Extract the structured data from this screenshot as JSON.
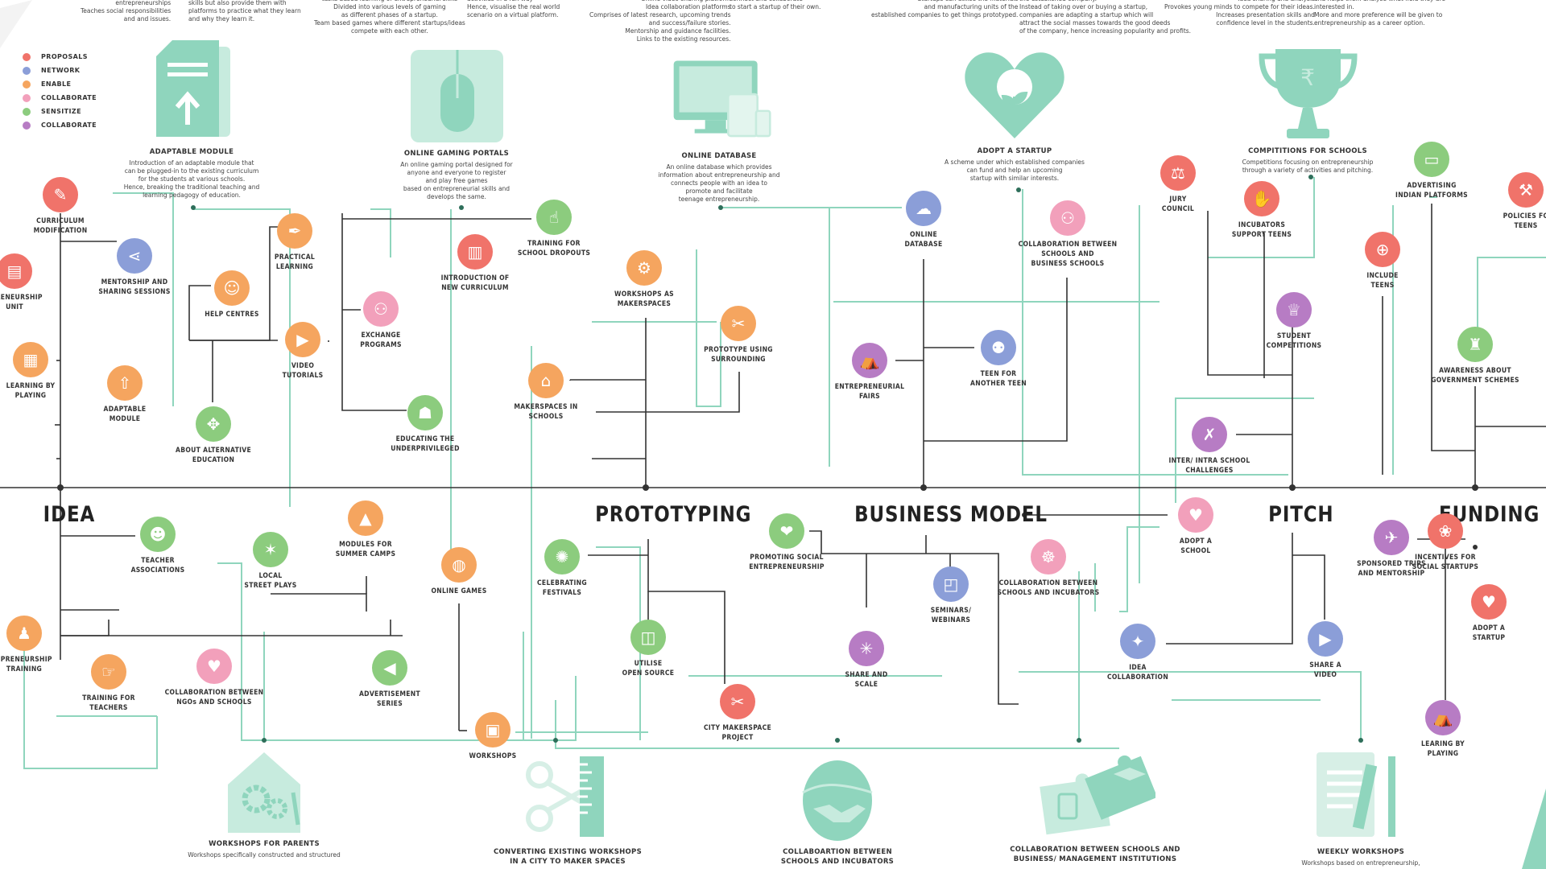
{
  "legend": [
    {
      "label": "PROPOSALS",
      "color": "#f0736a"
    },
    {
      "label": "NETWORK",
      "color": "#8b9ed8"
    },
    {
      "label": "ENABLE",
      "color": "#f5a55f"
    },
    {
      "label": "COLLABORATE",
      "color": "#f2a0bb"
    },
    {
      "label": "SENSITIZE",
      "color": "#8ccc7e"
    },
    {
      "label": "COLLABORATE",
      "color": "#b77cc4"
    }
  ],
  "stages": [
    "IDEA",
    "PROTOTYPING",
    "BUSINESS MODEL",
    "PITCH",
    "FUNDING"
  ],
  "top_texts": [
    "entrepreneurships\nTeaches social responsibilities\nand and issues.",
    "skills but also provide them with\nplatforms to practice what they learn\nand why they learn it.",
    "tasks based learning of entrepreneurial skills\nDivided into various levels of gaming\nas different phases of a startup.\nTeam based games where different startups/ideas\ncompete with each other.",
    "activities in a fun way\nHence, visualise the real world\nscenario on a virtual platform.",
    "Online video sharing platform\nIdea collaboration platforms\nComprises of latest research, upcoming trends\nand success/failure stories.\nMentorship and guidance facilities.\nLinks to the existing resources.",
    "connect and collaborate\nto start a startup of their own.",
    "Startups can utilise the materials\nand manufacturing units of the\nestablished companies to get things prototyped.",
    "the established company.\nInstead of taking over or buying a startup,\ncompanies are adapting a startup which will\nattract the social masses towards the good deeds\nof the company, hence increasing popularity and profits.",
    "Idea sharing and analysis\nProvokes young minds to compete for their ideas.\nIncreases presentation skills and\nconfidence level in the students.",
    "and helps them analyse what field they are\ninterested in.\nMore and more preference will be given to\nentrepreneurship as a career option."
  ],
  "big_items": [
    {
      "title": "ADAPTABLE MODULE",
      "desc": "Introduction of an adaptable module that\ncan be plugged-in to the existing curriculum\nfor the students at various schools.\nHence, breaking the traditional teaching and\nlearning pedagogy of education.",
      "icon": "document-upload-icon"
    },
    {
      "title": "ONLINE GAMING PORTALS",
      "desc": "An online gaming portal designed for\nanyone and everyone to register\nand play free games\nbased on entrepreneurial skills and\ndevelops the same.",
      "icon": "mouse-icon"
    },
    {
      "title": "ONLINE DATABASE",
      "desc": "An online database which provides\ninformation about entrepreneurship and\nconnects people with an idea to\npromote and facilitate\nteenage entrepreneurship.",
      "icon": "devices-icon"
    },
    {
      "title": "ADOPT A STARTUP",
      "desc": "A scheme under which established companies\ncan fund and help an upcoming\nstartup with similar interests.",
      "icon": "heart-plant-icon"
    },
    {
      "title": "COMPITITIONS FOR SCHOOLS",
      "desc": "Competitions focusing on entrepreneurship\nthrough a variety of activities and pitching.",
      "icon": "trophy-icon"
    },
    {
      "title": "WORKSHOPS FOR PARENTS",
      "desc": "Workshops specifically constructed and structured",
      "icon": "house-gears-icon"
    },
    {
      "title": "CONVERTING EXISTING WORKSHOPS\nIN A CITY TO MAKER SPACES",
      "desc": "",
      "icon": "tools-icon"
    },
    {
      "title": "COLLABOARTION BETWEEN\nSCHOOLS AND INCUBATORS",
      "desc": "",
      "icon": "egg-handshake-icon"
    },
    {
      "title": "COLLABORATION BETWEEN SCHOOLS AND\nBUSINESS/ MANAGEMENT INSTITUTIONS",
      "desc": "",
      "icon": "puzzle-icon"
    },
    {
      "title": "WEEKLY WORKSHOPS",
      "desc": "Workshops based on entrepreneurship,",
      "icon": "clipboard-pencil-icon"
    }
  ],
  "nodes": [
    {
      "label": "CURRICULUM\nMODIFICATION",
      "color": "#f0736a",
      "icon": "pencil-icon"
    },
    {
      "label": "EPRENEURSHIP\nUNIT",
      "color": "#f0736a",
      "icon": "book-icon"
    },
    {
      "label": "LEARNING BY\nPLAYING",
      "color": "#f5a55f",
      "icon": "cards-icon"
    },
    {
      "label": "MENTORSHIP AND\nSHARING SESSIONS",
      "color": "#8b9ed8",
      "icon": "share-icon"
    },
    {
      "label": "ADAPTABLE\nMODULE",
      "color": "#f5a55f",
      "icon": "upload-icon"
    },
    {
      "label": "HELP CENTRES",
      "color": "#f5a55f",
      "icon": "helpdesk-icon"
    },
    {
      "label": "PRACTICAL\nLEARNING",
      "color": "#f5a55f",
      "icon": "pen-icon"
    },
    {
      "label": "VIDEO\nTUTORIALS",
      "color": "#f5a55f",
      "icon": "play-icon"
    },
    {
      "label": "ABOUT ALTERNATIVE\nEDUCATION",
      "color": "#8ccc7e",
      "icon": "arrows-icon"
    },
    {
      "label": "EXCHANGE\nPROGRAMS",
      "color": "#f2a0bb",
      "icon": "people-icon"
    },
    {
      "label": "INTRODUCTION OF\nNEW CURRICULUM",
      "color": "#f0736a",
      "icon": "document-icon"
    },
    {
      "label": "EDUCATING THE\nUNDERPRIVILEGED",
      "color": "#8ccc7e",
      "icon": "teach-icon"
    },
    {
      "label": "TRAINING FOR\nSCHOOL DROPOUTS",
      "color": "#8ccc7e",
      "icon": "training-icon"
    },
    {
      "label": "WORKSHOPS AS\nMAKERSPACES",
      "color": "#f5a55f",
      "icon": "gears-icon"
    },
    {
      "label": "PROTOTYPE USING\nSURROUNDING",
      "color": "#f5a55f",
      "icon": "tools-icon"
    },
    {
      "label": "MAKERSPACES IN\nSCHOOLS",
      "color": "#f5a55f",
      "icon": "school-icon"
    },
    {
      "label": "ONLINE\nDATABASE",
      "color": "#8b9ed8",
      "icon": "cloud-icon"
    },
    {
      "label": "ENTREPRENEURIAL\nFAIRS",
      "color": "#b77cc4",
      "icon": "stall-icon"
    },
    {
      "label": "TEEN FOR\nANOTHER TEEN",
      "color": "#8b9ed8",
      "icon": "pair-icon"
    },
    {
      "label": "COLLABORATION BETWEEN\nSCHOOLS AND\nBUSINESS SCHOOLS",
      "color": "#f2a0bb",
      "icon": "group-icon"
    },
    {
      "label": "JURY\nCOUNCIL",
      "color": "#f0736a",
      "icon": "scales-icon"
    },
    {
      "label": "INCUBATORS\nSUPPORT TEENS",
      "color": "#f0736a",
      "icon": "hands-icon"
    },
    {
      "label": "STUDENT\nCOMPETITIONS",
      "color": "#b77cc4",
      "icon": "trophy-icon"
    },
    {
      "label": "INCLUDE\nTEENS",
      "color": "#f0736a",
      "icon": "plus-icon"
    },
    {
      "label": "INTER/ INTRA SCHOOL\nCHALLENGES",
      "color": "#b77cc4",
      "icon": "strategy-icon"
    },
    {
      "label": "ADVERTISING\nINDIAN PLATFORMS",
      "color": "#8ccc7e",
      "icon": "monitor-icon"
    },
    {
      "label": "AWARENESS ABOUT\nGOVERNMENT SCHEMES",
      "color": "#8ccc7e",
      "icon": "emblem-icon"
    },
    {
      "label": "POLICIES FO\nTEENS",
      "color": "#f0736a",
      "icon": "gavel-icon"
    },
    {
      "label": "TEACHER\nASSOCIATIONS",
      "color": "#8ccc7e",
      "icon": "teachers-icon"
    },
    {
      "label": "LOCAL\nSTREET PLAYS",
      "color": "#8ccc7e",
      "icon": "dancers-icon"
    },
    {
      "label": "MODULES FOR\nSUMMER CAMPS",
      "color": "#f5a55f",
      "icon": "tent-icon"
    },
    {
      "label": "ONLINE GAMES",
      "color": "#f5a55f",
      "icon": "mouse-icon"
    },
    {
      "label": "EPRENEURSHIP\nTRAINING",
      "color": "#f5a55f",
      "icon": "runner-icon"
    },
    {
      "label": "TRAINING FOR\nTEACHERS",
      "color": "#f5a55f",
      "icon": "lecture-icon"
    },
    {
      "label": "COLLABORATION BETWEEN\nNGOs AND SCHOOLS",
      "color": "#f2a0bb",
      "icon": "care-icon"
    },
    {
      "label": "ADVERTISEMENT\nSERIES",
      "color": "#8ccc7e",
      "icon": "megaphone-icon"
    },
    {
      "label": "WORKSHOPS",
      "color": "#f5a55f",
      "icon": "workshop-icon"
    },
    {
      "label": "CELEBRATING\nFESTIVALS",
      "color": "#8ccc7e",
      "icon": "festival-icon"
    },
    {
      "label": "UTILISE\nOPEN SOURCE",
      "color": "#8ccc7e",
      "icon": "open-book-icon"
    },
    {
      "label": "CITY MAKERSPACE\nPROJECT",
      "color": "#f0736a",
      "icon": "scissors-icon"
    },
    {
      "label": "PROMOTING SOCIAL\nENTREPRENEURSHIP",
      "color": "#8ccc7e",
      "icon": "hand-heart-icon"
    },
    {
      "label": "SEMINARS/\nWEBINARS",
      "color": "#8b9ed8",
      "icon": "presentation-icon"
    },
    {
      "label": "SHARE AND\nSCALE",
      "color": "#b77cc4",
      "icon": "network-icon"
    },
    {
      "label": "COLLABORATION BETWEEN\nSCHOOLS AND INCUBATORS",
      "color": "#f2a0bb",
      "icon": "helping-icon"
    },
    {
      "label": "ADOPT A\nSCHOOL",
      "color": "#f2a0bb",
      "icon": "family-icon"
    },
    {
      "label": "IDEA\nCOLLABORATION",
      "color": "#8b9ed8",
      "icon": "bulb-icon"
    },
    {
      "label": "SHARE A\nVIDEO",
      "color": "#8b9ed8",
      "icon": "video-share-icon"
    },
    {
      "label": "SPONSORED TRIPS\nAND MENTORSHIP",
      "color": "#b77cc4",
      "icon": "plane-icon"
    },
    {
      "label": "ADOPT A\nSTARTUP",
      "color": "#f0736a",
      "icon": "heart-icon"
    },
    {
      "label": "LEARING BY\nPLAYING",
      "color": "#b77cc4",
      "icon": "stall-icon"
    },
    {
      "label": "INCENTIVES FOR\nSOCIAL STARTUPS",
      "color": "#f0736a",
      "icon": "lotus-icon"
    }
  ]
}
